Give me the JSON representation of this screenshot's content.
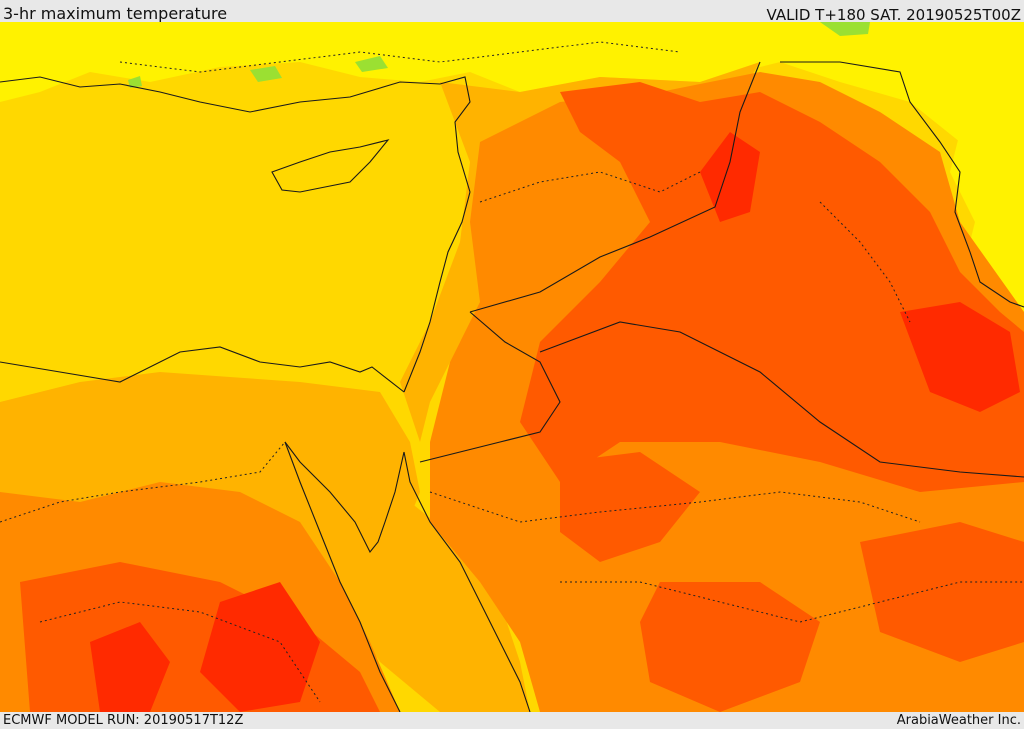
{
  "header": {
    "title": "3-hr maximum temperature",
    "valid": "VALID T+180 SAT. 20190525T00Z"
  },
  "footer": {
    "model_run": "ECMWF MODEL RUN: 20190517T12Z",
    "credit": "ArabiaWeather Inc."
  },
  "map": {
    "colors": {
      "sea": "#ffd800",
      "level_yellow": "#fff200",
      "level_green": "#9be032",
      "level_gold": "#ffb300",
      "level_orange": "#ff8a00",
      "level_red_orange": "#ff5a00",
      "level_red": "#ff2a00",
      "boundary": "#1a1a1a"
    }
  }
}
